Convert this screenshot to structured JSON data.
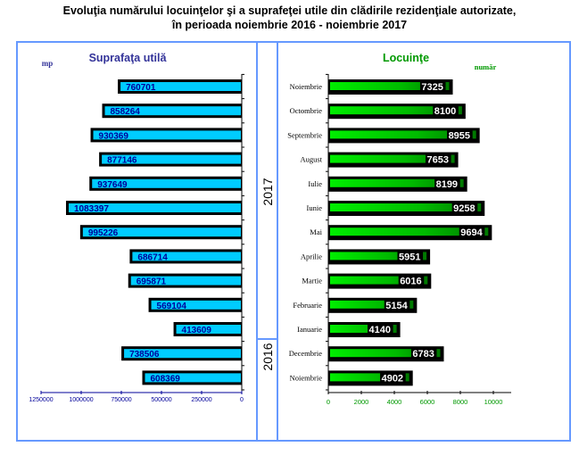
{
  "title": {
    "line1": "Evoluţia numărului locuinţelor şi a suprafeţei utile din clădirile rezidenţiale autorizate,",
    "line2": "în perioada noiembrie 2016 - noiembrie 2017"
  },
  "colors": {
    "frame": "#6699ff",
    "area_bar": "#00ccff",
    "area_label": "#000099",
    "area_title": "#333399",
    "dwell_bar": "#00cc00",
    "dwell_title": "#009900",
    "dwell_ticks": "#009900",
    "area_ticks": "#000099"
  },
  "years": [
    "2017",
    "2016"
  ],
  "chart_data": [
    {
      "type": "bar",
      "orientation": "horizontal-reversed",
      "title": "Suprafaţa utilă",
      "unit_label": "mp",
      "categories": [
        "Noiembrie 2017",
        "Octombrie 2017",
        "Septembrie 2017",
        "August 2017",
        "Iulie 2017",
        "Iunie 2017",
        "Mai 2017",
        "Aprilie 2017",
        "Martie 2017",
        "Februarie 2017",
        "Ianuarie 2017",
        "Decembrie 2016",
        "Noiembrie 2016"
      ],
      "values": [
        760701,
        858264,
        930369,
        877146,
        937649,
        1083397,
        995226,
        686714,
        695871,
        569104,
        413609,
        738506,
        608369
      ],
      "data_labels": [
        "760701",
        "858264",
        "930369",
        "877146",
        "937649",
        "1083397",
        "995226",
        "686714",
        "695871",
        "569104",
        "413609",
        "738506",
        "608369"
      ],
      "xlim": [
        0,
        1250000
      ],
      "xticks": [
        "1250000",
        "1000000",
        "750000",
        "500000",
        "250000",
        "0"
      ],
      "xtick_values": [
        1250000,
        1000000,
        750000,
        500000,
        250000,
        0
      ]
    },
    {
      "type": "bar",
      "orientation": "horizontal",
      "title": "Locuinţe",
      "unit_label": "număr",
      "categories": [
        "Noiembrie",
        "Octombrie",
        "Septembrie",
        "August",
        "Iulie",
        "Iunie",
        "Mai",
        "Aprilie",
        "Martie",
        "Februarie",
        "Ianuarie",
        "Decembrie",
        "Noiembrie"
      ],
      "values": [
        7325,
        8100,
        8955,
        7653,
        8199,
        9258,
        9694,
        5951,
        6016,
        5154,
        4140,
        6783,
        4902
      ],
      "data_labels": [
        "7325",
        "8100",
        "8955",
        "7653",
        "8199",
        "9258",
        "9694",
        "5951",
        "6016",
        "5154",
        "4140",
        "6783",
        "4902"
      ],
      "xlim": [
        0,
        10000
      ],
      "xticks": [
        "0",
        "2000",
        "4000",
        "6000",
        "8000",
        "10000"
      ],
      "xtick_values": [
        0,
        2000,
        4000,
        6000,
        8000,
        10000
      ]
    }
  ]
}
